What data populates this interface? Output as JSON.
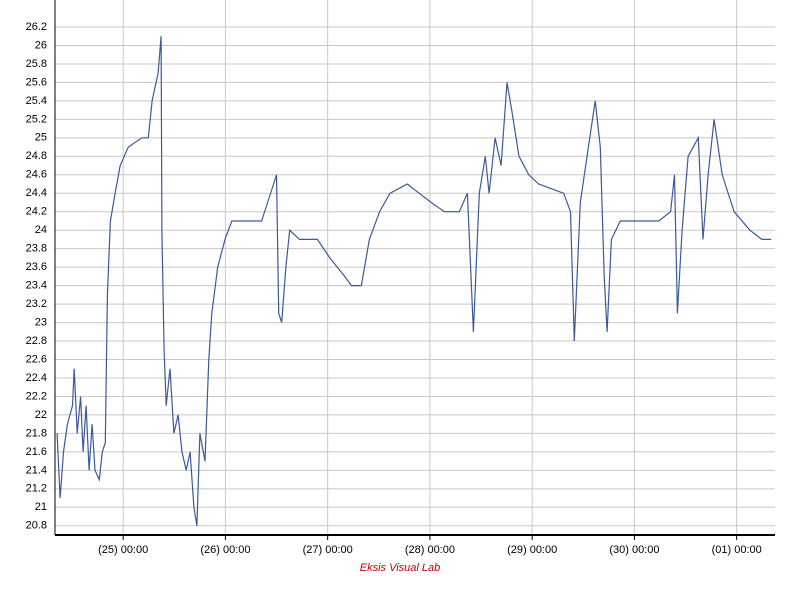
{
  "chart_data": {
    "type": "line",
    "color": "#3b5a9a",
    "grid": true,
    "watermark": "Eksis Visual Lab",
    "x": [
      -15.5,
      -14.8,
      -14,
      -13.1,
      -11.9,
      -11.5,
      -10.8,
      -10,
      -9.4,
      -8.7,
      -8,
      -7.3,
      -6.6,
      -5.6,
      -4.9,
      -4.2,
      -3.7,
      -3,
      -1.9,
      -0.7,
      1.2,
      4.4,
      5.9,
      6.8,
      8.2,
      8.9,
      9.1,
      9.6,
      10.1,
      11,
      11.9,
      12.9,
      13.8,
      14.8,
      15.7,
      16.6,
      17.3,
      18,
      19.2,
      20.1,
      20.8,
      22.2,
      23.9,
      25.5,
      32.5,
      33.9,
      35.3,
      36,
      36.5,
      37.2,
      38.2,
      39.1,
      41.4,
      45.6,
      48.5,
      52,
      53.6,
      55.9,
      57.8,
      60.2,
      62.6,
      66.7,
      69.5,
      72.3,
      75.4,
      78.9,
      80.8,
      82.2,
      83.6,
      85,
      85.9,
      87.3,
      88.7,
      90.1,
      91.2,
      92.9,
      95.2,
      97.5,
      103.4,
      105,
      105.9,
      107.3,
      109.2,
      110.8,
      112,
      112.9,
      113.6,
      114.6,
      116.7,
      125.7,
      128.5,
      129.4,
      130.1,
      131.2,
      132.6,
      135,
      136.1,
      137.3,
      138.7,
      140.6,
      143.4,
      147.1,
      149.9,
      152.1
    ],
    "values": [
      21.8,
      21.1,
      21.6,
      21.9,
      22.1,
      22.5,
      21.8,
      22.2,
      21.6,
      22.1,
      21.4,
      21.9,
      21.4,
      21.3,
      21.6,
      21.7,
      23.3,
      24.1,
      24.4,
      24.7,
      24.9,
      25,
      25,
      25.4,
      25.7,
      26.1,
      24,
      22.7,
      22.1,
      22.5,
      21.8,
      22,
      21.6,
      21.4,
      21.6,
      21,
      20.8,
      21.8,
      21.5,
      22.6,
      23.1,
      23.6,
      23.9,
      24.1,
      24.1,
      24.3,
      24.5,
      24.6,
      23.1,
      23,
      23.6,
      24,
      23.9,
      23.9,
      23.7,
      23.5,
      23.4,
      23.4,
      23.9,
      24.2,
      24.4,
      24.5,
      24.4,
      24.3,
      24.2,
      24.2,
      24.4,
      22.9,
      24.4,
      24.8,
      24.4,
      25,
      24.7,
      25.6,
      25.3,
      24.8,
      24.6,
      24.5,
      24.4,
      24.2,
      22.8,
      24.3,
      24.9,
      25.4,
      24.9,
      23.5,
      22.9,
      23.9,
      24.1,
      24.1,
      24.2,
      24.6,
      23.1,
      24,
      24.8,
      25,
      23.9,
      24.6,
      25.2,
      24.6,
      24.2,
      24,
      23.9,
      23.9
    ],
    "xlim": [
      -16,
      153
    ],
    "xticks": [
      {
        "value": 0,
        "label": "(25) 00:00"
      },
      {
        "value": 24,
        "label": "(26) 00:00"
      },
      {
        "value": 48,
        "label": "(27) 00:00"
      },
      {
        "value": 72,
        "label": "(28) 00:00"
      },
      {
        "value": 96,
        "label": "(29) 00:00"
      },
      {
        "value": 120,
        "label": "(30) 00:00"
      },
      {
        "value": 144,
        "label": "(01) 00:00"
      }
    ],
    "ylim": [
      20.7,
      26.2
    ],
    "yticks": [
      20.8,
      21,
      21.2,
      21.4,
      21.6,
      21.8,
      22,
      22.2,
      22.4,
      22.6,
      22.8,
      23,
      23.2,
      23.4,
      23.6,
      23.8,
      24,
      24.2,
      24.4,
      24.6,
      24.8,
      25,
      25.2,
      25.4,
      25.6,
      25.8,
      26,
      26.2
    ]
  }
}
